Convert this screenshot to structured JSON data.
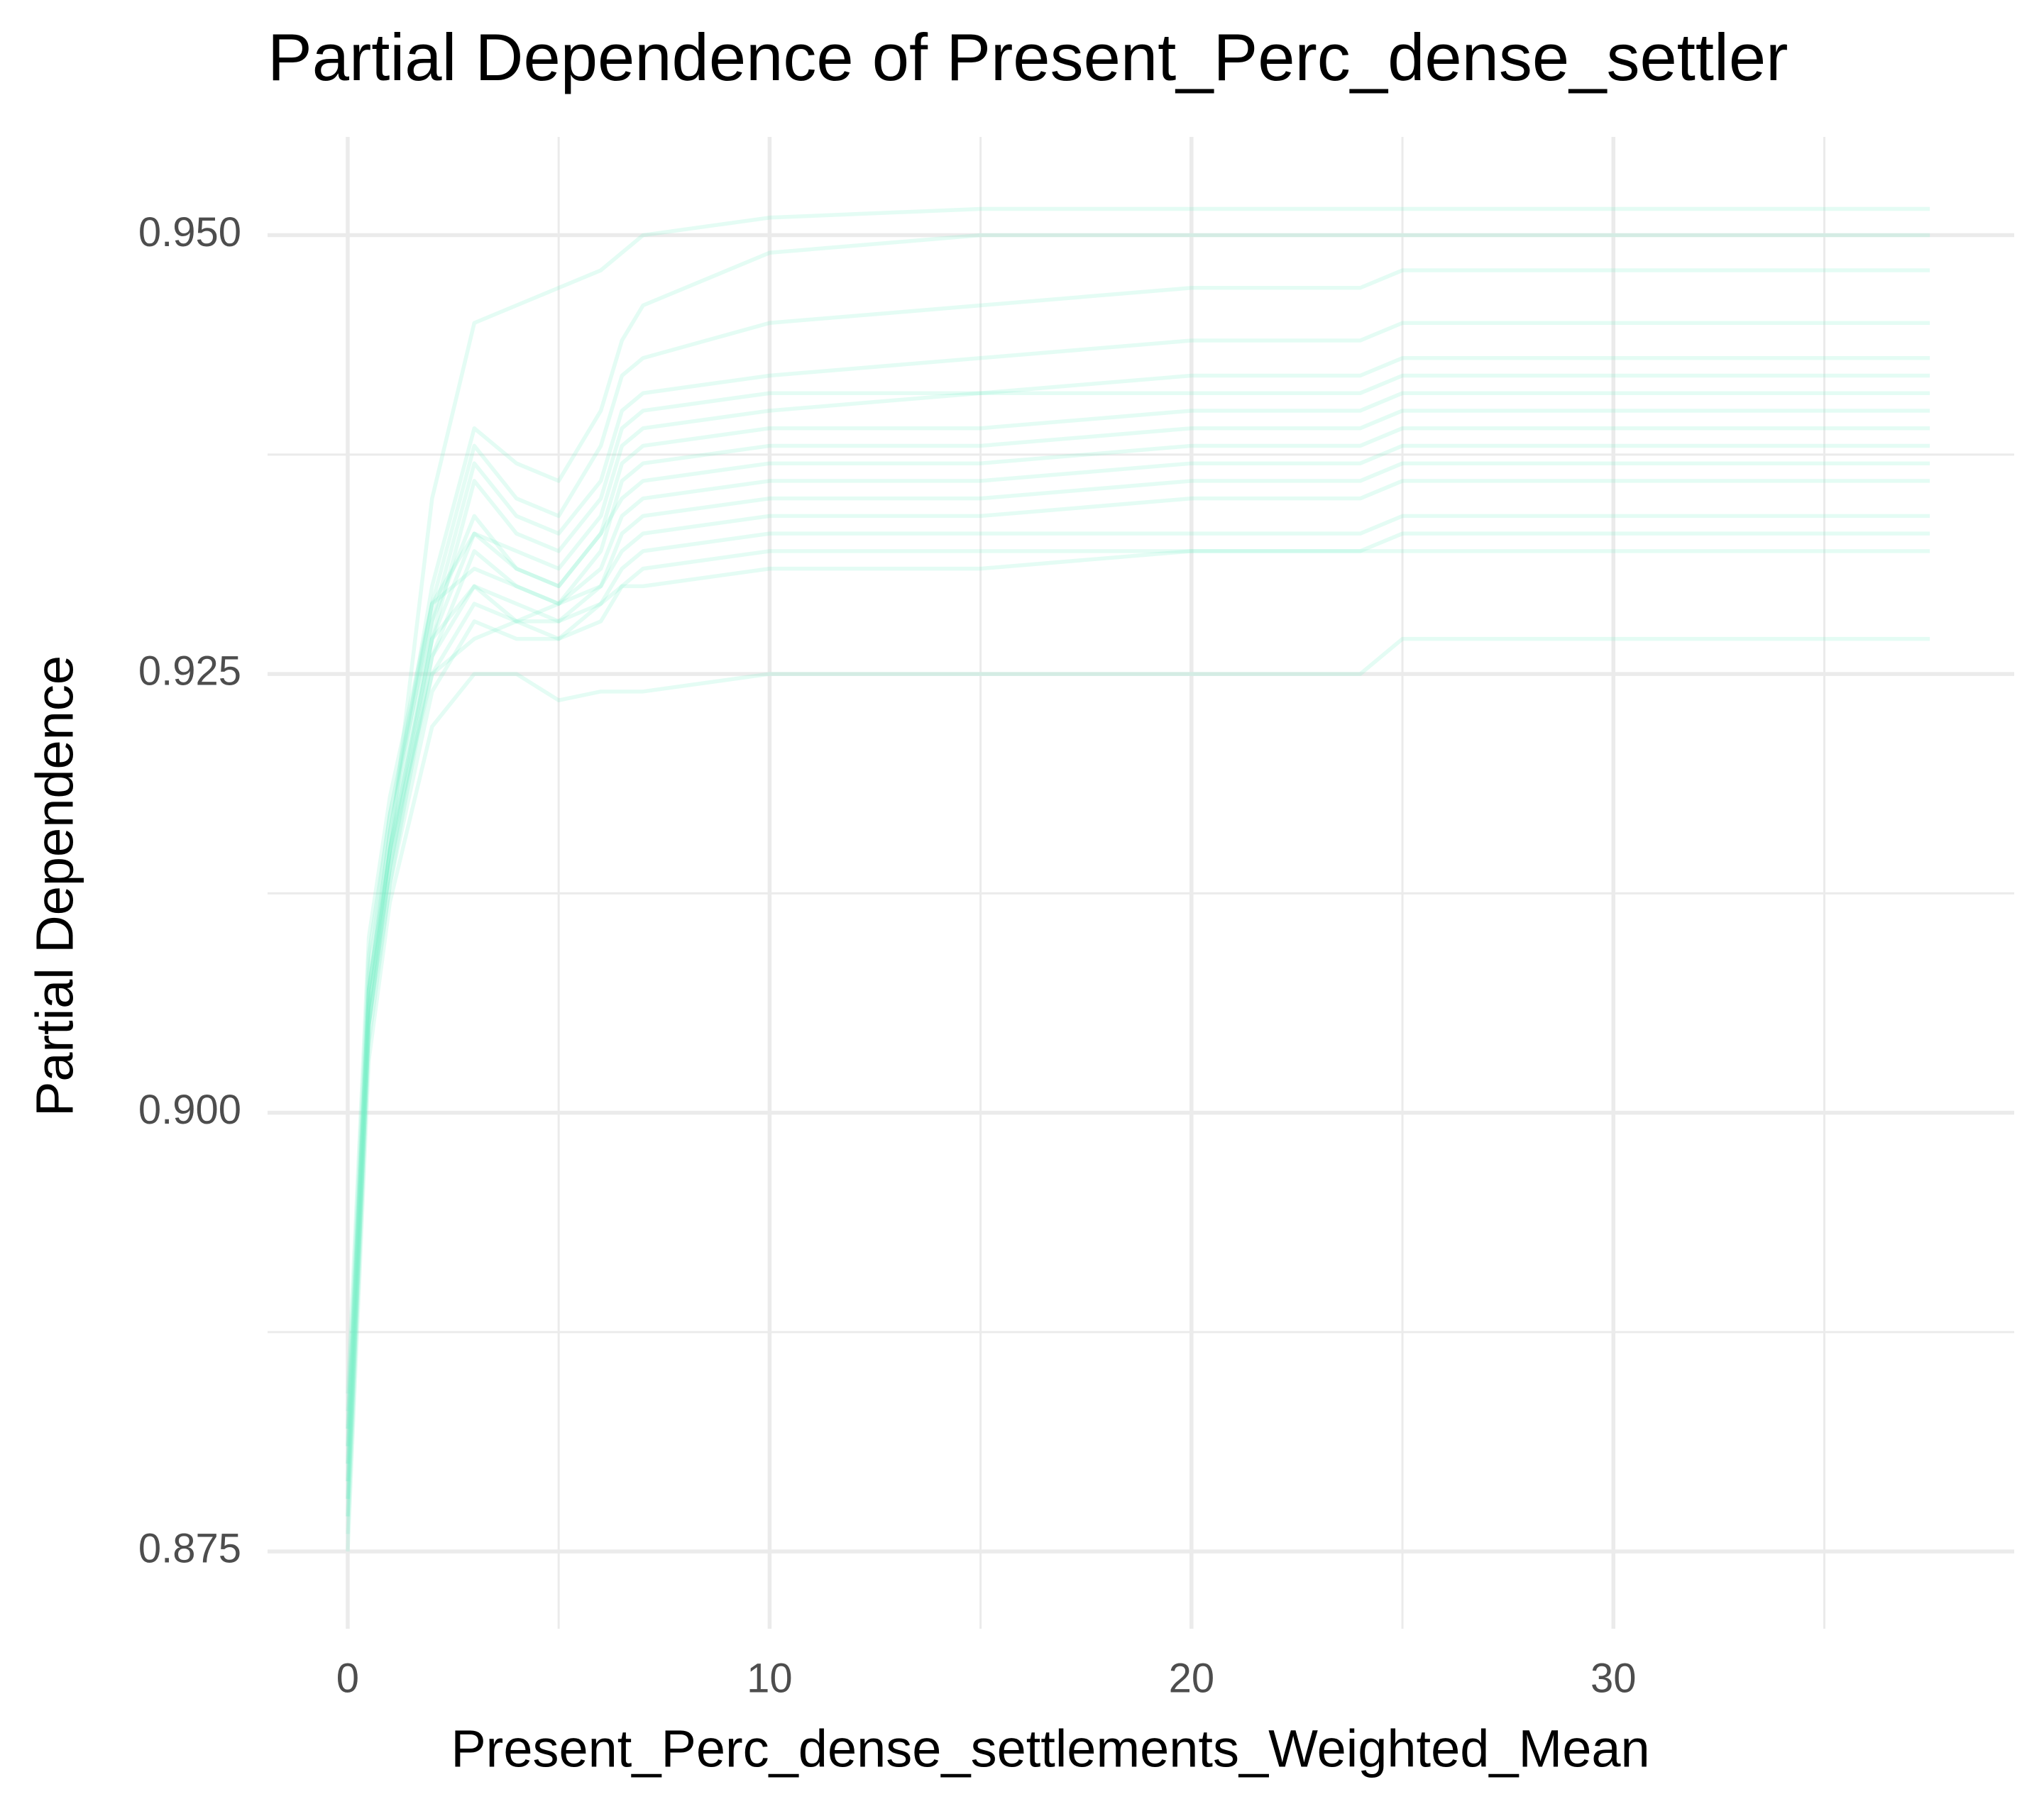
{
  "chart_data": {
    "type": "line",
    "title": "Partial Dependence of Present_Perc_dense_settler",
    "x_label": "Present_Perc_dense_settlements_Weighted_Mean",
    "y_label": "Partial Dependence",
    "color": "#76eec6",
    "opacity": 0.2,
    "grid": true,
    "xlim": [
      -1.9,
      39.5
    ],
    "ylim": [
      0.8706,
      0.9556
    ],
    "xticks": [
      0,
      10,
      20,
      30
    ],
    "xminorticks": [
      5,
      15,
      25,
      35
    ],
    "yticks": [
      {
        "value": 0.875,
        "label": "0.875"
      },
      {
        "value": 0.9,
        "label": "0.900"
      },
      {
        "value": 0.925,
        "label": "0.925"
      },
      {
        "value": 0.95,
        "label": "0.950"
      }
    ],
    "yminorticks": [
      0.8875,
      0.9125,
      0.9375
    ],
    "x": [
      0,
      0.5,
      1,
      2,
      3,
      4,
      5,
      6,
      6.5,
      7,
      10,
      15,
      20,
      24,
      25,
      30,
      37.5
    ],
    "series": [
      {
        "values": [
          0.878,
          0.905,
          0.915,
          0.935,
          0.945,
          0.946,
          0.947,
          0.948,
          0.949,
          0.95,
          0.951,
          0.9515,
          0.9515,
          0.9515,
          0.9515,
          0.9515,
          0.9515
        ]
      },
      {
        "values": [
          0.88,
          0.907,
          0.916,
          0.93,
          0.939,
          0.937,
          0.936,
          0.94,
          0.944,
          0.946,
          0.949,
          0.95,
          0.95,
          0.95,
          0.95,
          0.95,
          0.95
        ]
      },
      {
        "values": [
          0.882,
          0.908,
          0.917,
          0.929,
          0.938,
          0.935,
          0.934,
          0.938,
          0.942,
          0.943,
          0.945,
          0.946,
          0.947,
          0.947,
          0.948,
          0.948,
          0.948
        ]
      },
      {
        "values": [
          0.879,
          0.906,
          0.915,
          0.928,
          0.937,
          0.934,
          0.933,
          0.936,
          0.94,
          0.941,
          0.942,
          0.943,
          0.944,
          0.944,
          0.945,
          0.945,
          0.945
        ]
      },
      {
        "values": [
          0.877,
          0.905,
          0.914,
          0.927,
          0.936,
          0.933,
          0.932,
          0.935,
          0.939,
          0.94,
          0.941,
          0.941,
          0.942,
          0.942,
          0.943,
          0.943,
          0.943
        ]
      },
      {
        "values": [
          0.881,
          0.907,
          0.916,
          0.929,
          0.933,
          0.932,
          0.931,
          0.934,
          0.938,
          0.939,
          0.94,
          0.941,
          0.941,
          0.941,
          0.942,
          0.942,
          0.942
        ]
      },
      {
        "values": [
          0.883,
          0.909,
          0.917,
          0.928,
          0.934,
          0.931,
          0.93,
          0.933,
          0.937,
          0.938,
          0.939,
          0.939,
          0.94,
          0.94,
          0.941,
          0.941,
          0.941
        ]
      },
      {
        "values": [
          0.876,
          0.904,
          0.913,
          0.926,
          0.932,
          0.93,
          0.929,
          0.932,
          0.936,
          0.937,
          0.938,
          0.938,
          0.939,
          0.939,
          0.94,
          0.94,
          0.94
        ]
      },
      {
        "values": [
          0.88,
          0.906,
          0.915,
          0.927,
          0.933,
          0.931,
          0.93,
          0.933,
          0.935,
          0.936,
          0.937,
          0.937,
          0.938,
          0.938,
          0.939,
          0.939,
          0.939
        ]
      },
      {
        "values": [
          0.884,
          0.91,
          0.918,
          0.929,
          0.931,
          0.93,
          0.929,
          0.931,
          0.934,
          0.935,
          0.936,
          0.936,
          0.937,
          0.937,
          0.938,
          0.938,
          0.938
        ]
      },
      {
        "values": [
          0.878,
          0.905,
          0.914,
          0.926,
          0.93,
          0.929,
          0.928,
          0.93,
          0.933,
          0.934,
          0.935,
          0.935,
          0.936,
          0.936,
          0.937,
          0.937,
          0.937
        ]
      },
      {
        "values": [
          0.881,
          0.907,
          0.915,
          0.927,
          0.93,
          0.928,
          0.929,
          0.93,
          0.932,
          0.933,
          0.934,
          0.934,
          0.935,
          0.935,
          0.936,
          0.936,
          0.936
        ]
      },
      {
        "values": [
          0.879,
          0.906,
          0.914,
          0.925,
          0.929,
          0.928,
          0.927,
          0.929,
          0.931,
          0.932,
          0.933,
          0.933,
          0.933,
          0.933,
          0.934,
          0.934,
          0.934
        ]
      },
      {
        "values": [
          0.877,
          0.905,
          0.913,
          0.924,
          0.928,
          0.927,
          0.927,
          0.928,
          0.93,
          0.931,
          0.932,
          0.932,
          0.932,
          0.932,
          0.933,
          0.933,
          0.933
        ]
      },
      {
        "values": [
          0.882,
          0.907,
          0.915,
          0.925,
          0.927,
          0.928,
          0.928,
          0.929,
          0.93,
          0.93,
          0.931,
          0.931,
          0.932,
          0.932,
          0.932,
          0.932,
          0.932
        ]
      },
      {
        "values": [
          0.875,
          0.903,
          0.912,
          0.922,
          0.925,
          0.925,
          0.9235,
          0.924,
          0.924,
          0.924,
          0.925,
          0.925,
          0.925,
          0.925,
          0.927,
          0.927,
          0.927
        ]
      }
    ]
  }
}
